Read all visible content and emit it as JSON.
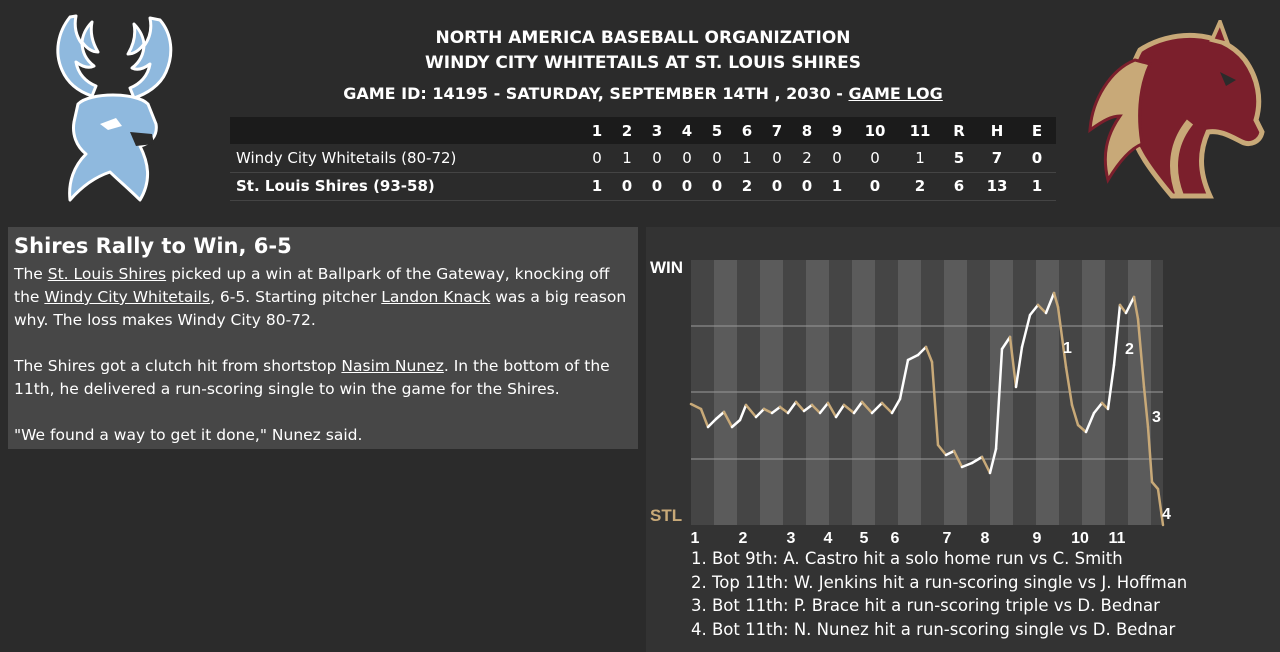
{
  "header": {
    "organization": "NORTH AMERICA BASEBALL ORGANIZATION",
    "matchup": "WINDY CITY WHITETAILS AT ST. LOUIS SHIRES",
    "game_info": "GAME ID: 14195 - SATURDAY, SEPTEMBER 14TH , 2030 - ",
    "game_log_link": "GAME LOG"
  },
  "logos": {
    "away": {
      "icon": "deer-head-logo",
      "color": "#8fb9de"
    },
    "home": {
      "icon": "horse-head-logo",
      "color": "#7b1f2c",
      "accent": "#c8a978"
    }
  },
  "linescore": {
    "innings": [
      "1",
      "2",
      "3",
      "4",
      "5",
      "6",
      "7",
      "8",
      "9",
      "10",
      "11"
    ],
    "totals_headers": [
      "R",
      "H",
      "E"
    ],
    "teams": [
      {
        "name": "Windy City Whitetails (80-72)",
        "innings": [
          "0",
          "1",
          "0",
          "0",
          "0",
          "1",
          "0",
          "2",
          "0",
          "0",
          "1"
        ],
        "totals": [
          "5",
          "7",
          "0"
        ]
      },
      {
        "name": "St. Louis Shires (93-58)",
        "innings": [
          "1",
          "0",
          "0",
          "0",
          "0",
          "2",
          "0",
          "0",
          "1",
          "0",
          "2"
        ],
        "totals": [
          "6",
          "13",
          "1"
        ]
      }
    ]
  },
  "story": {
    "headline": "Shires Rally to Win, 6-5",
    "p1": {
      "t1": "The ",
      "link1": "St. Louis Shires",
      "t2": " picked up a win at Ballpark of the Gateway, knocking off the ",
      "link2": "Windy City Whitetails",
      "t3": ", 6-5. Starting pitcher ",
      "link3": "Landon Knack",
      "t4": " was a big reason why. The loss makes Windy City 80-72."
    },
    "p2": {
      "t1": "The Shires got a clutch hit from shortstop ",
      "link1": "Nasim Nunez",
      "t2": ". In the bottom of the 11th, he delivered a run-scoring single to win the game for the Shires."
    },
    "p3": "\"We found a way to get it done,\" Nunez said."
  },
  "win_probability": {
    "top_label": "WIN",
    "bottom_label": "STL",
    "away_color": "#ffffff",
    "home_color": "#c8a978",
    "inning_labels": [
      "1",
      "2",
      "3",
      "4",
      "5",
      "6",
      "7",
      "8",
      "9",
      "10",
      "11"
    ],
    "markers": [
      "1",
      "2",
      "3",
      "4"
    ],
    "notes": [
      "1. Bot 9th: A. Castro hit a solo home run vs C. Smith",
      "2. Top 11th: W. Jenkins hit a run-scoring single vs J. Hoffman",
      "3. Bot 11th: P. Brace hit a run-scoring triple vs D. Bednar",
      "4. Bot 11th: N. Nunez hit a run-scoring single vs D. Bednar"
    ]
  }
}
